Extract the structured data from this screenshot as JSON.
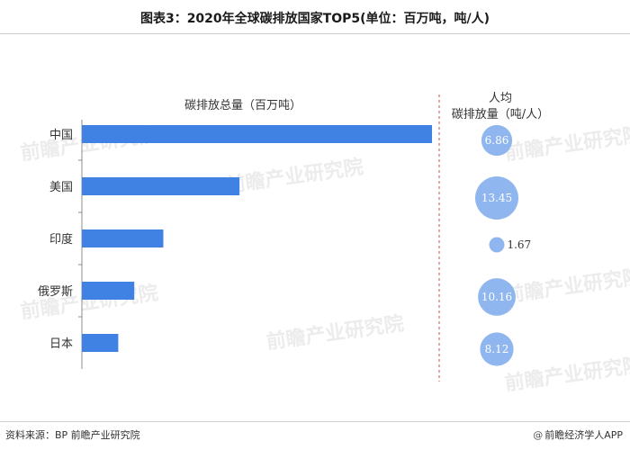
{
  "title": "图表3：2020年全球碳排放国家TOP5(单位：百万吨，吨/人)",
  "source": "资料来源：BP 前瞻产业研究院",
  "brand": "前瞻经济学人APP",
  "watermark": "前瞻产业研究院",
  "colors": {
    "bar": "#3f82e4",
    "bubble": "#8fb6ee",
    "divider": "#c0504d",
    "axis": "#8c8c8c"
  },
  "chart_data": {
    "type": "bar",
    "orientation": "horizontal",
    "categories": [
      "中国",
      "美国",
      "印度",
      "俄罗斯",
      "日本"
    ],
    "series": [
      {
        "name": "碳排放总量（百万吨）",
        "values": [
          9899.3,
          4457.2,
          2302.3,
          1482.2,
          1027.0
        ]
      }
    ],
    "bubble_series": {
      "name_lines": [
        "人均",
        "碳排放量（吨/人）"
      ],
      "values": [
        6.86,
        13.45,
        1.67,
        10.16,
        8.12
      ]
    },
    "xlim": [
      0,
      9899.3
    ],
    "grid": false,
    "legend": "none"
  }
}
